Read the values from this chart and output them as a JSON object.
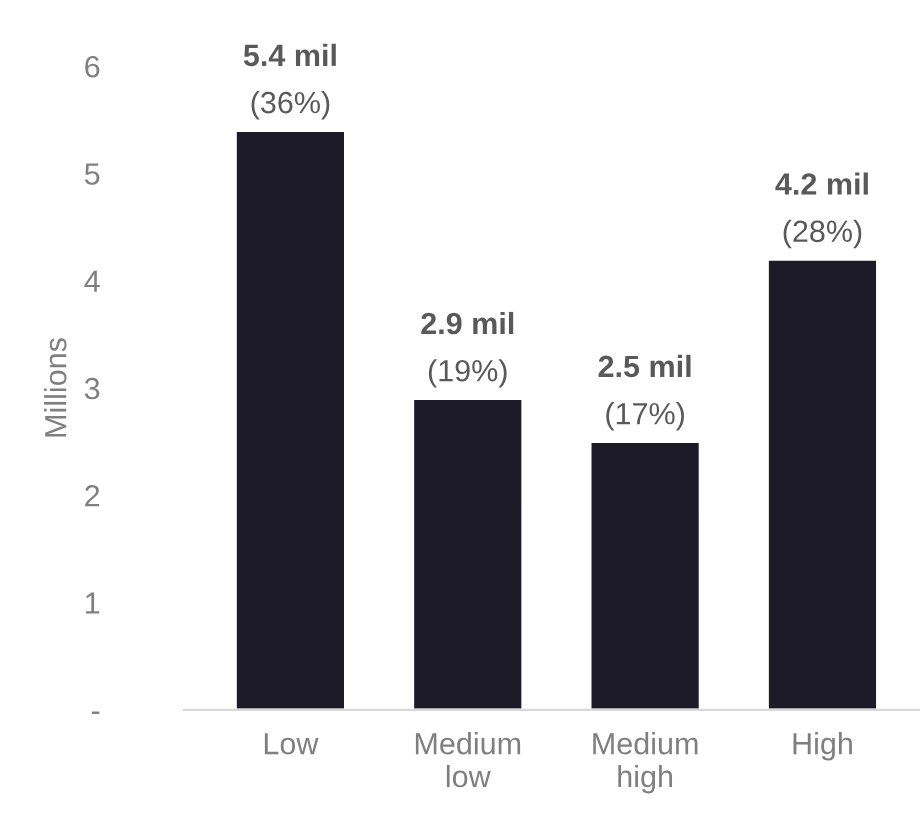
{
  "chart_data": {
    "type": "bar",
    "ylabel": "Millions",
    "categories": [
      "Low",
      "Medium\nlow",
      "Medium\nhigh",
      "High"
    ],
    "values": [
      5.4,
      2.9,
      2.5,
      4.2
    ],
    "color": "#1c1b27",
    "value_labels": [
      "5.4 mil\n(36%)",
      "2.9 mil\n(19%)",
      "2.5 mil\n(17%)",
      "4.2 mil\n(28%)"
    ],
    "ylim": [
      0,
      6
    ],
    "yticks": [
      {
        "value": 0,
        "label": "-"
      },
      1,
      2,
      3,
      4,
      5,
      6
    ],
    "grid": false,
    "legend": false
  }
}
